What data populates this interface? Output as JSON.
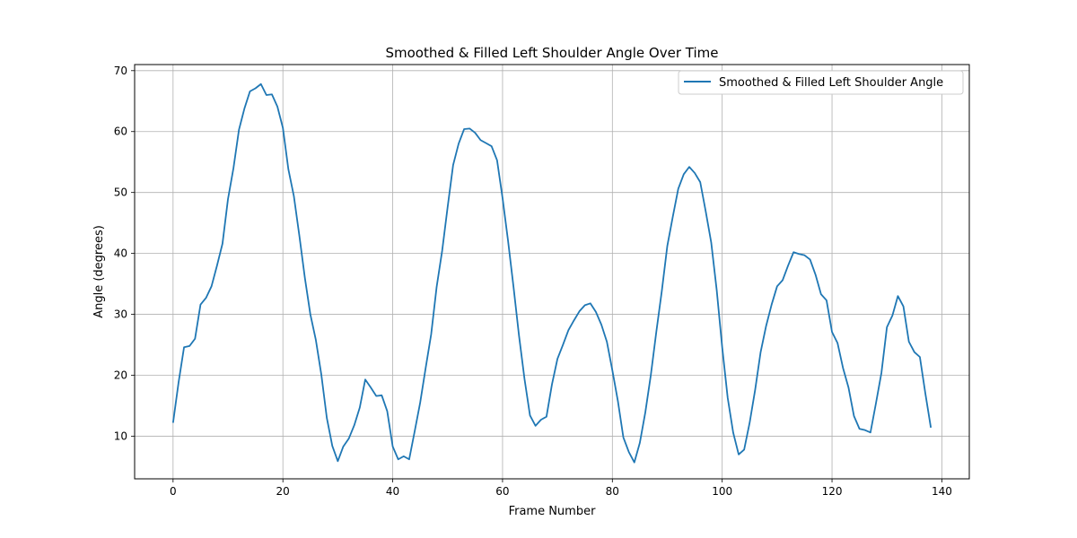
{
  "chart_data": {
    "type": "line",
    "title": "Smoothed & Filled Left Shoulder Angle Over Time",
    "xlabel": "Frame Number",
    "ylabel": "Angle (degrees)",
    "xlim": [
      -7,
      145
    ],
    "ylim": [
      3,
      71
    ],
    "x_ticks": [
      0,
      20,
      40,
      60,
      80,
      100,
      120,
      140
    ],
    "y_ticks": [
      10,
      20,
      30,
      40,
      50,
      60,
      70
    ],
    "grid": true,
    "legend_position": "top-right",
    "line_color": "#1f77b4",
    "series": [
      {
        "name": "Smoothed & Filled Left Shoulder Angle",
        "x": [
          0,
          1,
          2,
          3,
          4,
          5,
          6,
          7,
          8,
          9,
          10,
          11,
          12,
          13,
          14,
          15,
          16,
          17,
          18,
          19,
          20,
          21,
          22,
          23,
          24,
          25,
          26,
          27,
          28,
          29,
          30,
          31,
          32,
          33,
          34,
          35,
          36,
          37,
          38,
          39,
          40,
          41,
          42,
          43,
          44,
          45,
          46,
          47,
          48,
          49,
          50,
          51,
          52,
          53,
          54,
          55,
          56,
          57,
          58,
          59,
          60,
          61,
          62,
          63,
          64,
          65,
          66,
          67,
          68,
          69,
          70,
          71,
          72,
          73,
          74,
          75,
          76,
          77,
          78,
          79,
          80,
          81,
          82,
          83,
          84,
          85,
          86,
          87,
          88,
          89,
          90,
          91,
          92,
          93,
          94,
          95,
          96,
          97,
          98,
          99,
          100,
          101,
          102,
          103,
          104,
          105,
          106,
          107,
          108,
          109,
          110,
          111,
          112,
          113,
          114,
          115,
          116,
          117,
          118,
          119,
          120,
          121,
          122,
          123,
          124,
          125,
          126,
          127,
          128,
          129,
          130,
          131,
          132,
          133,
          134,
          135,
          136,
          137,
          138
        ],
        "y": [
          12.2,
          18.8,
          24.6,
          24.8,
          26.0,
          31.6,
          32.7,
          34.6,
          38.0,
          41.6,
          48.9,
          54.0,
          60.3,
          63.8,
          66.6,
          67.1,
          67.8,
          66.0,
          66.1,
          64.1,
          60.6,
          53.8,
          49.4,
          42.9,
          36.0,
          30.0,
          25.8,
          20.1,
          13.0,
          8.4,
          5.9,
          8.3,
          9.6,
          11.8,
          14.7,
          19.3,
          18.0,
          16.6,
          16.7,
          14.1,
          8.3,
          6.2,
          6.7,
          6.2,
          10.8,
          15.5,
          21.2,
          26.7,
          34.5,
          40.4,
          47.6,
          54.5,
          58.0,
          60.4,
          60.5,
          59.8,
          58.6,
          58.1,
          57.6,
          55.3,
          49.1,
          42.1,
          34.5,
          26.5,
          19.4,
          13.4,
          11.7,
          12.7,
          13.2,
          18.5,
          22.7,
          25.0,
          27.4,
          29.0,
          30.5,
          31.5,
          31.8,
          30.4,
          28.3,
          25.5,
          20.8,
          15.8,
          9.8,
          7.4,
          5.7,
          8.9,
          13.9,
          20.0,
          27.1,
          33.8,
          41.2,
          46.0,
          50.6,
          53.0,
          54.2,
          53.2,
          51.7,
          46.9,
          41.8,
          34.0,
          24.6,
          16.3,
          10.6,
          7.0,
          7.8,
          12.2,
          17.6,
          23.8,
          28.1,
          31.6,
          34.6,
          35.6,
          38.0,
          40.2,
          39.9,
          39.7,
          39.0,
          36.5,
          33.3,
          32.3,
          27.1,
          25.3,
          21.2,
          18.0,
          13.3,
          11.2,
          11.0,
          10.6,
          15.4,
          20.4,
          27.9,
          29.8,
          33.0,
          31.3,
          25.5,
          23.8,
          23.0,
          17.0,
          11.4
        ]
      }
    ]
  }
}
